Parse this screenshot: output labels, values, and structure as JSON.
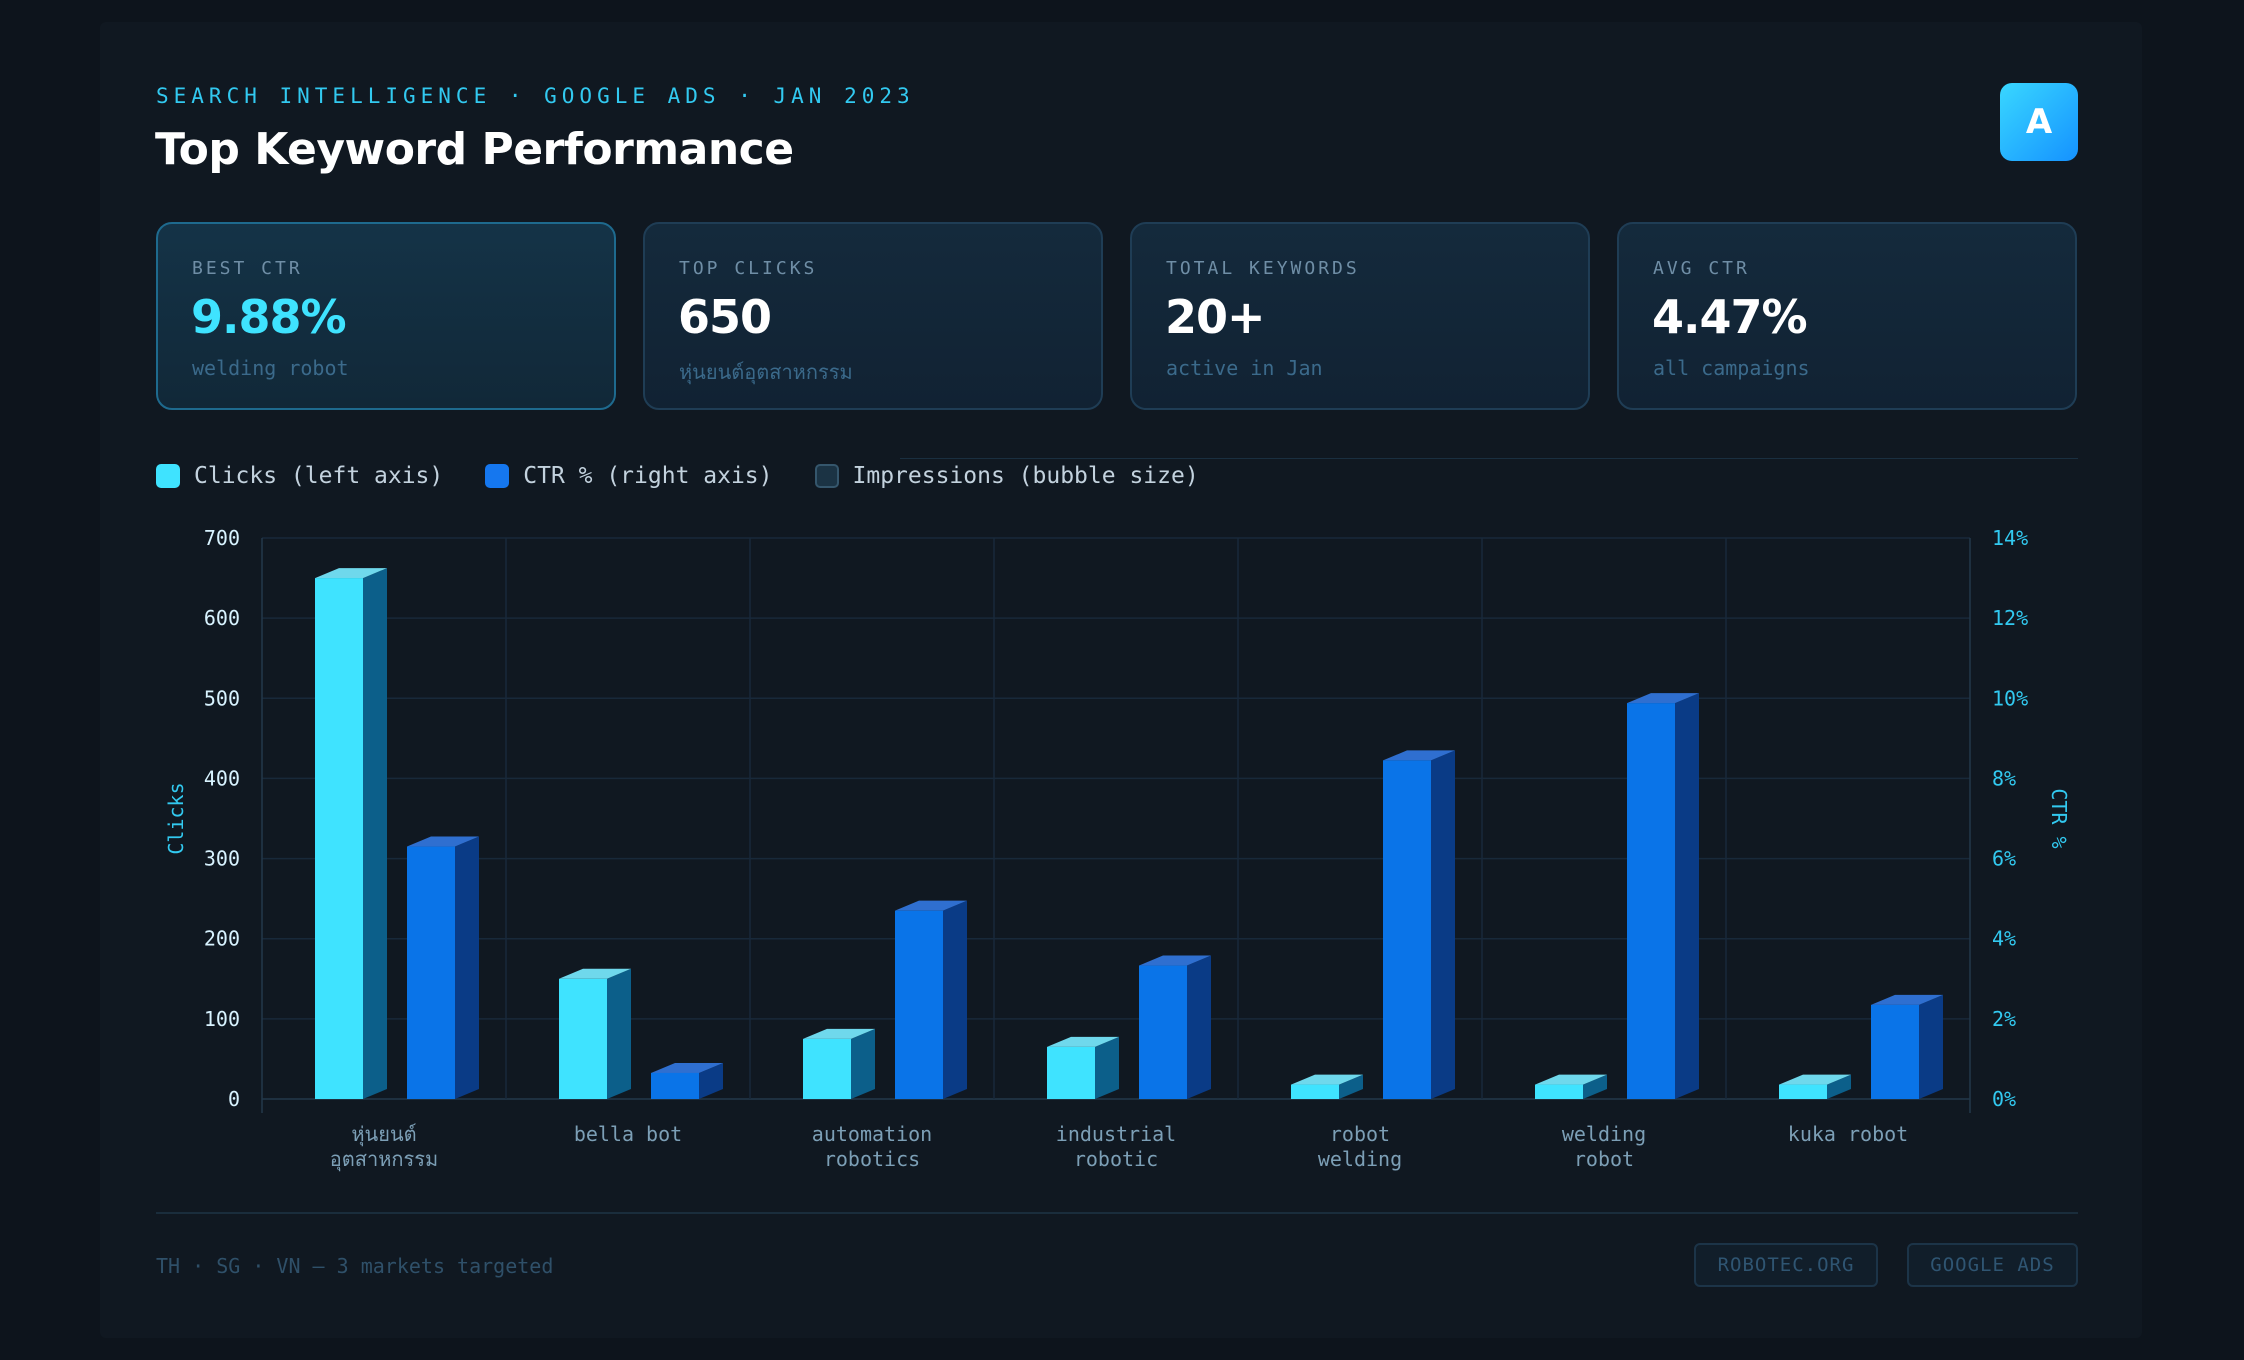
{
  "header": {
    "eyebrow": "SEARCH INTELLIGENCE · GOOGLE ADS · JAN 2023",
    "title": "Top Keyword Performance",
    "logo_letter": "A"
  },
  "kpis": [
    {
      "label": "BEST CTR",
      "value": "9.88%",
      "sub": "welding robot"
    },
    {
      "label": "TOP CLICKS",
      "value": "650",
      "sub": "หุ่นยนต์อุตสาหกรรม"
    },
    {
      "label": "TOTAL KEYWORDS",
      "value": "20+",
      "sub": "active in Jan"
    },
    {
      "label": "AVG CTR",
      "value": "4.47%",
      "sub": "all campaigns"
    }
  ],
  "legend": [
    {
      "label": "Clicks (left axis)",
      "color": "#3fe3ff"
    },
    {
      "label": "CTR % (right axis)",
      "color": "#1577ef"
    },
    {
      "label": "Impressions (bubble size)",
      "color": "#1b3344"
    }
  ],
  "colors": {
    "clicks": "#3fe3ff",
    "ctr": "#0a74e8",
    "accent": "#32c9f0",
    "grid": "#18293a"
  },
  "chart_data": {
    "type": "bar",
    "categories": [
      [
        "หุ่นยนต์",
        "อุตสาหกรรม"
      ],
      [
        "bella bot"
      ],
      [
        "automation",
        "robotics"
      ],
      [
        "industrial",
        "robotic"
      ],
      [
        "robot",
        "welding"
      ],
      [
        "welding",
        "robot"
      ],
      [
        "kuka robot"
      ]
    ],
    "series": [
      {
        "name": "Clicks (left axis)",
        "axis": "left",
        "values": [
          650,
          150,
          75,
          65,
          18,
          18,
          18
        ]
      },
      {
        "name": "CTR % (right axis)",
        "axis": "right",
        "values": [
          6.3,
          0.65,
          4.7,
          3.33,
          8.45,
          9.88,
          2.35
        ]
      }
    ],
    "ylabel_left": "Clicks",
    "ylabel_right": "CTR %",
    "ylim_left": [
      0,
      700
    ],
    "ylim_right": [
      0,
      14
    ],
    "yticks_left": [
      "0",
      "100",
      "200",
      "300",
      "400",
      "500",
      "600",
      "700"
    ],
    "yticks_right": [
      "0%",
      "2%",
      "4%",
      "6%",
      "8%",
      "10%",
      "12%",
      "14%"
    ],
    "grid": true,
    "legend_position": "top-left"
  },
  "footer": {
    "text": "TH · SG · VN — 3 markets targeted",
    "tags": [
      "ROBOTEC.ORG",
      "GOOGLE ADS"
    ]
  }
}
